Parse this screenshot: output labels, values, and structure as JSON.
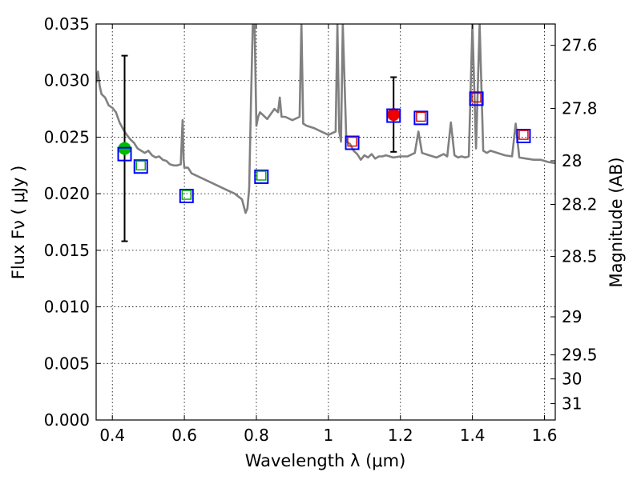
{
  "chart_data": {
    "type": "scatter",
    "xlabel": "Wavelength  λ (μm)",
    "ylabel": "Flux  Fν  ( μJy )",
    "y2label": "Magnitude (AB)",
    "xlim": [
      0.355,
      1.63
    ],
    "ylim": [
      0.0,
      0.035
    ],
    "grid": true,
    "x_ticks": [
      0.4,
      0.6,
      0.8,
      1.0,
      1.2,
      1.4,
      1.6
    ],
    "x_tick_labels": [
      "0.4",
      "0.6",
      "0.8",
      "1",
      "1.2",
      "1.4",
      "1.6"
    ],
    "y_ticks": [
      0.0,
      0.005,
      0.01,
      0.015,
      0.02,
      0.025,
      0.03,
      0.035
    ],
    "y_tick_labels": [
      "0.000",
      "0.005",
      "0.010",
      "0.015",
      "0.020",
      "0.025",
      "0.030",
      "0.035"
    ],
    "mag_ticks": [
      27.6,
      27.8,
      28,
      28.2,
      28.5,
      29,
      29.5,
      30,
      31
    ],
    "mag_tick_labels": [
      "27.6",
      "27.8",
      "28",
      "28.2",
      "28.5",
      "29",
      "29.5",
      "30",
      "31"
    ],
    "colors": {
      "model": "#808080",
      "observed_blue": "#0000ff",
      "optical_model": "#00aa00",
      "nir_model": "#cc0000",
      "point_green": "#00bb00",
      "point_red": "#ee0000",
      "errorbar": "#000000"
    },
    "series": [
      {
        "name": "model spectrum",
        "kind": "line",
        "x": [
          0.355,
          0.36,
          0.365,
          0.37,
          0.38,
          0.39,
          0.4,
          0.41,
          0.42,
          0.43,
          0.44,
          0.45,
          0.46,
          0.47,
          0.48,
          0.49,
          0.5,
          0.51,
          0.52,
          0.53,
          0.54,
          0.55,
          0.56,
          0.57,
          0.58,
          0.59,
          0.595,
          0.598,
          0.6,
          0.61,
          0.62,
          0.64,
          0.66,
          0.68,
          0.7,
          0.72,
          0.74,
          0.76,
          0.77,
          0.775,
          0.78,
          0.785,
          0.79,
          0.795,
          0.8,
          0.805,
          0.81,
          0.83,
          0.85,
          0.86,
          0.865,
          0.87,
          0.88,
          0.9,
          0.92,
          0.925,
          0.93,
          0.94,
          0.96,
          0.98,
          1.0,
          1.02,
          1.025,
          1.03,
          1.035,
          1.04,
          1.05,
          1.06,
          1.07,
          1.08,
          1.09,
          1.1,
          1.11,
          1.12,
          1.13,
          1.14,
          1.15,
          1.16,
          1.17,
          1.18,
          1.2,
          1.22,
          1.24,
          1.25,
          1.26,
          1.28,
          1.3,
          1.32,
          1.33,
          1.34,
          1.35,
          1.36,
          1.37,
          1.38,
          1.39,
          1.4,
          1.41,
          1.42,
          1.43,
          1.44,
          1.45,
          1.47,
          1.49,
          1.51,
          1.52,
          1.53,
          1.55,
          1.57,
          1.59,
          1.61,
          1.63
        ],
        "y": [
          0.0298,
          0.0308,
          0.0295,
          0.0288,
          0.0285,
          0.0278,
          0.0276,
          0.0272,
          0.0263,
          0.0257,
          0.0252,
          0.0248,
          0.0245,
          0.024,
          0.0238,
          0.0236,
          0.0238,
          0.0234,
          0.0232,
          0.0233,
          0.023,
          0.0229,
          0.0226,
          0.0225,
          0.0225,
          0.0226,
          0.0265,
          0.023,
          0.0223,
          0.0223,
          0.0218,
          0.0215,
          0.0212,
          0.0209,
          0.0206,
          0.0203,
          0.02,
          0.0195,
          0.0183,
          0.0187,
          0.0205,
          0.028,
          0.035,
          0.035,
          0.026,
          0.0268,
          0.0272,
          0.0266,
          0.0275,
          0.0272,
          0.0285,
          0.0268,
          0.0268,
          0.0265,
          0.0268,
          0.035,
          0.0262,
          0.026,
          0.0258,
          0.0255,
          0.0252,
          0.0255,
          0.035,
          0.0255,
          0.0246,
          0.035,
          0.0246,
          0.0244,
          0.0238,
          0.0235,
          0.023,
          0.0234,
          0.0232,
          0.0235,
          0.0231,
          0.0233,
          0.0233,
          0.0234,
          0.0233,
          0.0232,
          0.0233,
          0.0233,
          0.0236,
          0.0255,
          0.0236,
          0.0234,
          0.0232,
          0.0235,
          0.0233,
          0.0263,
          0.0234,
          0.0232,
          0.0233,
          0.0232,
          0.0233,
          0.035,
          0.024,
          0.035,
          0.0238,
          0.0236,
          0.0238,
          0.0236,
          0.0234,
          0.0233,
          0.0262,
          0.0232,
          0.0231,
          0.023,
          0.023,
          0.0228,
          0.0227
        ]
      },
      {
        "name": "observed (blue squares)",
        "kind": "square",
        "x": [
          0.434,
          0.479,
          0.606,
          0.814,
          1.066,
          1.181,
          1.257,
          1.411,
          1.542
        ],
        "y": [
          0.0235,
          0.0224,
          0.0198,
          0.0215,
          0.0245,
          0.0269,
          0.0267,
          0.0284,
          0.0251
        ]
      },
      {
        "name": "model optical (green squares)",
        "kind": "square",
        "x": [
          0.479,
          0.606,
          0.814
        ],
        "y": [
          0.0225,
          0.0199,
          0.0216
        ]
      },
      {
        "name": "model near-IR (red squares)",
        "kind": "square",
        "x": [
          1.066,
          1.257,
          1.411,
          1.542
        ],
        "y": [
          0.0246,
          0.0268,
          0.0285,
          0.0252
        ]
      },
      {
        "name": "point with error (green)",
        "kind": "errorpoint",
        "x": [
          0.434
        ],
        "y": [
          0.024
        ],
        "yerr_low": [
          0.0082
        ],
        "yerr_high": [
          0.0082
        ]
      },
      {
        "name": "point with error (red)",
        "kind": "errorpoint",
        "x": [
          1.181
        ],
        "y": [
          0.027
        ],
        "yerr_low": [
          0.0033
        ],
        "yerr_high": [
          0.0033
        ]
      }
    ]
  }
}
